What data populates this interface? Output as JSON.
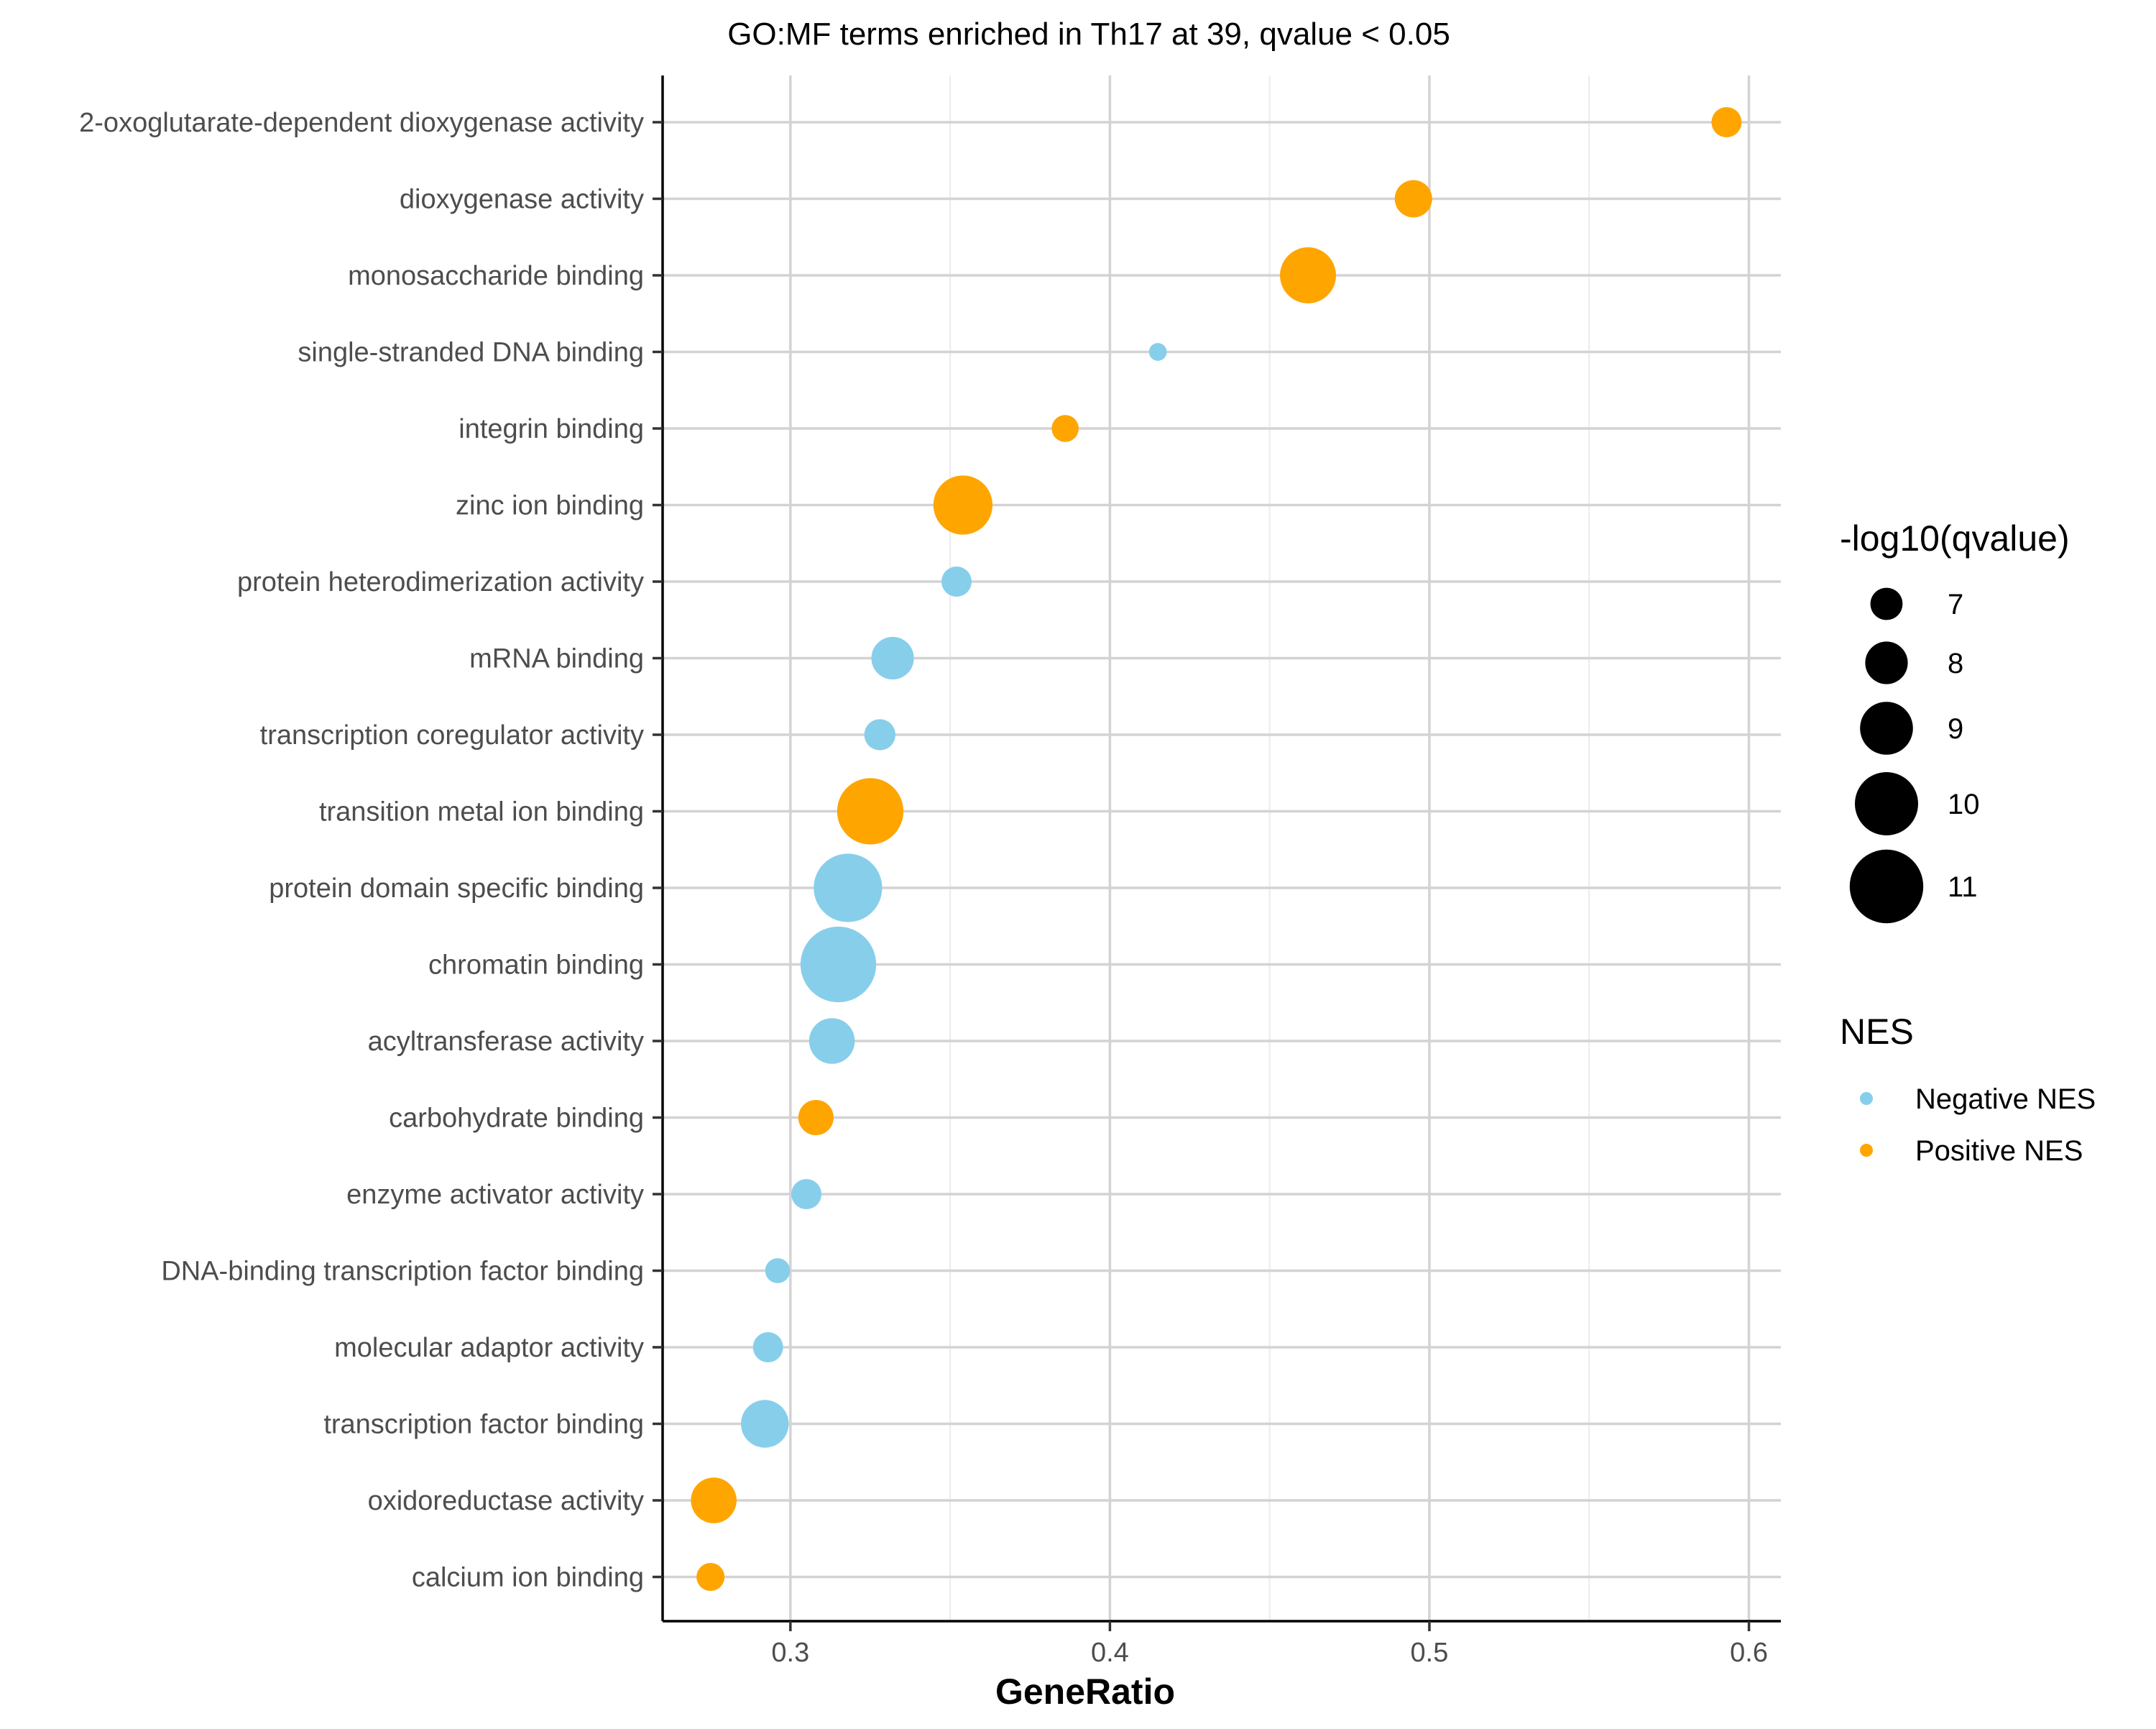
{
  "chart_data": {
    "type": "scatter",
    "title": "GO:MF terms enriched in Th17 at 39, qvalue < 0.05",
    "xlabel": "GeneRatio",
    "ylabel": "",
    "xlim": [
      0.26,
      0.61
    ],
    "xticks": [
      "0.3",
      "0.4",
      "0.5",
      "0.6"
    ],
    "xtick_values": [
      0.3,
      0.4,
      0.5,
      0.6
    ],
    "grid": true,
    "legend_position": "right",
    "colors": {
      "Negative NES": "#87CEEB",
      "Positive NES": "#FFA500"
    },
    "points": [
      {
        "term": "2-oxoglutarate-dependent dioxygenase activity",
        "x": 0.593,
        "size": 6.8,
        "nes": "Positive NES"
      },
      {
        "term": "dioxygenase activity",
        "x": 0.495,
        "size": 7.5,
        "nes": "Positive NES"
      },
      {
        "term": "monosaccharide binding",
        "x": 0.462,
        "size": 9.3,
        "nes": "Positive NES"
      },
      {
        "term": "single-stranded DNA binding",
        "x": 0.415,
        "size": 5.6,
        "nes": "Negative NES"
      },
      {
        "term": "integrin binding",
        "x": 0.386,
        "size": 6.5,
        "nes": "Positive NES"
      },
      {
        "term": "zinc ion binding",
        "x": 0.354,
        "size": 9.6,
        "nes": "Positive NES"
      },
      {
        "term": "protein heterodimerization activity",
        "x": 0.352,
        "size": 6.8,
        "nes": "Negative NES"
      },
      {
        "term": "mRNA binding",
        "x": 0.332,
        "size": 8.0,
        "nes": "Negative NES"
      },
      {
        "term": "transcription coregulator activity",
        "x": 0.328,
        "size": 6.9,
        "nes": "Negative NES"
      },
      {
        "term": "transition metal ion binding",
        "x": 0.325,
        "size": 10.3,
        "nes": "Positive NES"
      },
      {
        "term": "protein domain specific binding",
        "x": 0.318,
        "size": 10.5,
        "nes": "Negative NES"
      },
      {
        "term": "chromatin binding",
        "x": 0.315,
        "size": 11.2,
        "nes": "Negative NES"
      },
      {
        "term": "acyltransferase activity",
        "x": 0.313,
        "size": 8.3,
        "nes": "Negative NES"
      },
      {
        "term": "carbohydrate binding",
        "x": 0.308,
        "size": 7.3,
        "nes": "Positive NES"
      },
      {
        "term": "enzyme activator activity",
        "x": 0.305,
        "size": 6.8,
        "nes": "Negative NES"
      },
      {
        "term": "DNA-binding transcription factor binding",
        "x": 0.296,
        "size": 6.3,
        "nes": "Negative NES"
      },
      {
        "term": "molecular adaptor activity",
        "x": 0.293,
        "size": 6.8,
        "nes": "Negative NES"
      },
      {
        "term": "transcription factor binding",
        "x": 0.292,
        "size": 8.5,
        "nes": "Negative NES"
      },
      {
        "term": "oxidoreductase activity",
        "x": 0.276,
        "size": 8.3,
        "nes": "Positive NES"
      },
      {
        "term": "calcium ion binding",
        "x": 0.275,
        "size": 6.6,
        "nes": "Positive NES"
      }
    ],
    "legend_size": {
      "title": "-log10(qvalue)",
      "values": [
        7,
        8,
        9,
        10,
        11
      ],
      "labels": [
        "7",
        "8",
        "9",
        "10",
        "11"
      ]
    },
    "legend_color": {
      "title": "NES",
      "labels": [
        "Negative NES",
        "Positive NES"
      ]
    }
  }
}
